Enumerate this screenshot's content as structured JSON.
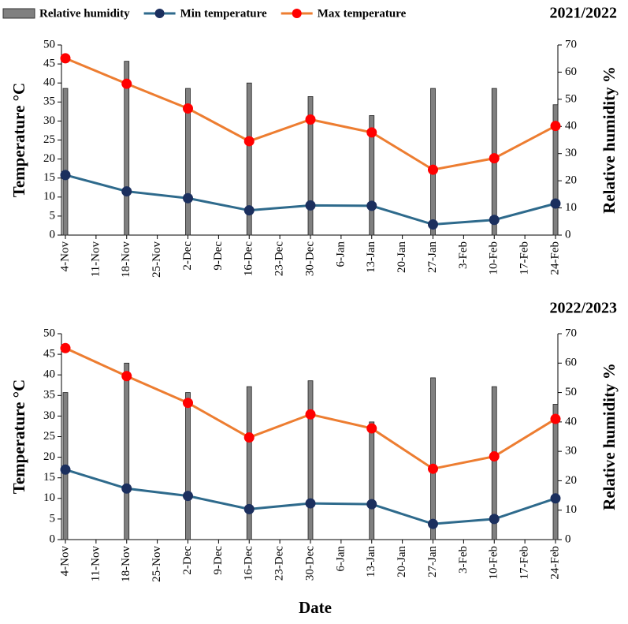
{
  "chart_data": [
    {
      "type": "combo",
      "title": "2021/2022",
      "ylabel": "Temperature °C",
      "y2label": "Relative humidity %",
      "categories": [
        "4-Nov",
        "11-Nov",
        "18-Nov",
        "25-Nov",
        "2-Dec",
        "9-Dec",
        "16-Dec",
        "23-Dec",
        "30-Dec",
        "6-Jan",
        "13-Jan",
        "20-Jan",
        "27-Jan",
        "3-Feb",
        "10-Feb",
        "17-Feb",
        "24-Feb"
      ],
      "ylim": [
        0,
        50
      ],
      "yticks": [
        0,
        5,
        10,
        15,
        20,
        25,
        30,
        35,
        40,
        45,
        50
      ],
      "y2lim": [
        0,
        70
      ],
      "y2ticks": [
        0,
        10,
        20,
        30,
        40,
        50,
        60,
        70
      ],
      "series": [
        {
          "name": "Relative humidity",
          "kind": "bar",
          "axis": "y2",
          "color": "#808080",
          "values": [
            54,
            null,
            64,
            null,
            54,
            null,
            56,
            null,
            51,
            null,
            44,
            null,
            54,
            null,
            54,
            null,
            48
          ]
        },
        {
          "name": "Min temperature",
          "kind": "line",
          "color": "#2e6a8c",
          "marker_color": "#1b2f5e",
          "values": [
            15.8,
            null,
            11.5,
            null,
            9.7,
            null,
            6.5,
            null,
            7.8,
            null,
            7.7,
            null,
            2.8,
            null,
            4,
            null,
            8.3
          ]
        },
        {
          "name": "Max temperature",
          "kind": "line",
          "color": "#ed7d31",
          "marker_color": "#ff0000",
          "values": [
            46.5,
            null,
            39.8,
            null,
            33.3,
            null,
            24.7,
            null,
            30.4,
            null,
            27,
            null,
            17.2,
            null,
            20.2,
            null,
            28.7
          ]
        }
      ]
    },
    {
      "type": "combo",
      "title": "2022/2023",
      "ylabel": "Temperature °C",
      "y2label": "Relative humidity %",
      "xlabel": "Date",
      "categories": [
        "4-Nov",
        "11-Nov",
        "18-Nov",
        "25-Nov",
        "2-Dec",
        "9-Dec",
        "16-Dec",
        "23-Dec",
        "30-Dec",
        "6-Jan",
        "13-Jan",
        "20-Jan",
        "27-Jan",
        "3-Feb",
        "10-Feb",
        "17-Feb",
        "24-Feb"
      ],
      "ylim": [
        0,
        50
      ],
      "yticks": [
        0,
        5,
        10,
        15,
        20,
        25,
        30,
        35,
        40,
        45,
        50
      ],
      "y2lim": [
        0,
        70
      ],
      "y2ticks": [
        0,
        10,
        20,
        30,
        40,
        50,
        60,
        70
      ],
      "series": [
        {
          "kind": "bar",
          "axis": "y2",
          "color": "#808080",
          "values": [
            50,
            null,
            60,
            null,
            50,
            null,
            52,
            null,
            54,
            null,
            40,
            null,
            55,
            null,
            52,
            null,
            46
          ]
        },
        {
          "kind": "line",
          "color": "#2e6a8c",
          "marker_color": "#1b2f5e",
          "values": [
            17,
            null,
            12.4,
            null,
            10.6,
            null,
            7.4,
            null,
            8.8,
            null,
            8.6,
            null,
            3.8,
            null,
            5,
            null,
            10
          ]
        },
        {
          "kind": "line",
          "color": "#ed7d31",
          "marker_color": "#ff0000",
          "values": [
            46.5,
            null,
            39.7,
            null,
            33.2,
            null,
            24.8,
            null,
            30.4,
            null,
            27,
            null,
            17.2,
            null,
            20.2,
            null,
            29.3
          ]
        }
      ]
    }
  ]
}
